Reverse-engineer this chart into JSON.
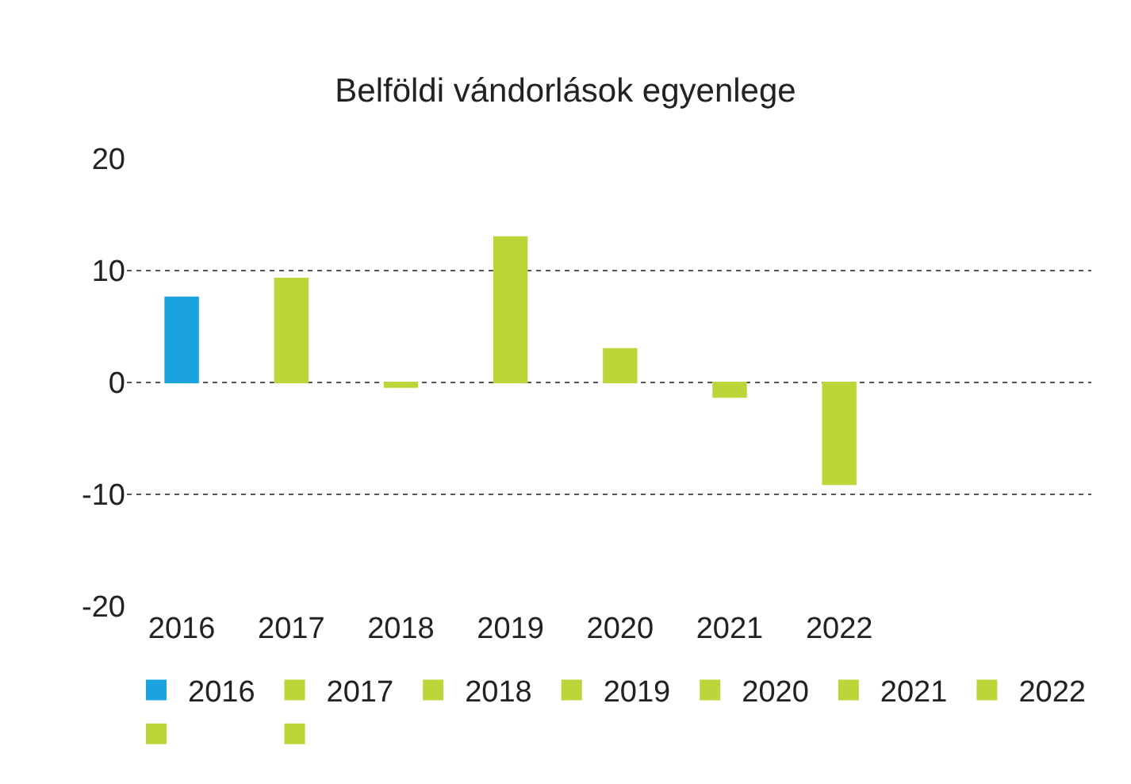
{
  "chart_data": {
    "type": "bar",
    "title": "Belföldi vándorlások egyenlege",
    "categories": [
      "2016",
      "2017",
      "2018",
      "2019",
      "2020",
      "2021",
      "2022"
    ],
    "series": [
      {
        "name": "2016",
        "color": "#1ba3e0",
        "values": [
          7.6,
          null,
          null,
          null,
          null,
          null,
          null
        ]
      },
      {
        "name": "2017",
        "color": "#bcd63a",
        "values": [
          null,
          9.3,
          null,
          null,
          null,
          null,
          null
        ]
      },
      {
        "name": "2018",
        "color": "#bcd63a",
        "values": [
          null,
          null,
          -0.4,
          null,
          null,
          null,
          null
        ]
      },
      {
        "name": "2019",
        "color": "#bcd63a",
        "values": [
          null,
          null,
          null,
          13.0,
          null,
          null,
          null
        ]
      },
      {
        "name": "2020",
        "color": "#bcd63a",
        "values": [
          null,
          null,
          null,
          null,
          3.0,
          null,
          null
        ]
      },
      {
        "name": "2021",
        "color": "#bcd63a",
        "values": [
          null,
          null,
          null,
          null,
          null,
          -1.3,
          null
        ]
      },
      {
        "name": "2022",
        "color": "#bcd63a",
        "values": [
          null,
          null,
          null,
          null,
          null,
          null,
          -9.1
        ]
      },
      {
        "color": "#bcd63a",
        "values": [
          null,
          null,
          null,
          null,
          null,
          null,
          null
        ]
      },
      {
        "color": "#bcd63a",
        "values": [
          null,
          null,
          null,
          null,
          null,
          null,
          null
        ]
      }
    ],
    "ylim": [
      -20,
      20
    ],
    "yticks": [
      -20,
      -10,
      0,
      10,
      20
    ],
    "grid": "y",
    "legend": "bottom",
    "stacked": true
  }
}
